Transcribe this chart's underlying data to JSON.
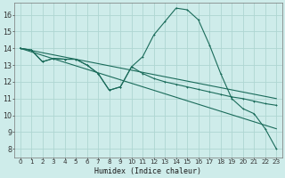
{
  "background_color": "#ceecea",
  "grid_color": "#aed6d2",
  "line_color": "#1a6b5a",
  "xlabel": "Humidex (Indice chaleur)",
  "xlim": [
    -0.5,
    23.5
  ],
  "ylim": [
    7.5,
    16.7
  ],
  "yticks": [
    8,
    9,
    10,
    11,
    12,
    13,
    14,
    15,
    16
  ],
  "xticks": [
    0,
    1,
    2,
    3,
    4,
    5,
    6,
    7,
    8,
    9,
    10,
    11,
    12,
    13,
    14,
    15,
    16,
    17,
    18,
    19,
    20,
    21,
    22,
    23
  ],
  "series1_x": [
    0,
    1,
    2,
    3,
    4,
    5,
    6,
    7,
    8,
    9,
    10,
    11,
    12,
    13,
    14,
    15,
    16,
    17,
    18,
    19,
    20,
    21,
    22,
    23
  ],
  "series1_y": [
    14.0,
    13.9,
    13.2,
    13.4,
    13.35,
    13.35,
    13.0,
    12.5,
    11.5,
    11.7,
    12.9,
    13.5,
    14.8,
    15.6,
    16.4,
    16.3,
    15.7,
    14.2,
    12.5,
    11.0,
    10.4,
    10.1,
    9.2,
    8.0
  ],
  "series2_x": [
    0,
    1,
    2,
    3,
    4,
    5,
    6,
    7,
    8,
    9,
    10,
    11,
    12,
    13,
    14,
    15,
    16,
    17,
    18,
    19,
    20,
    21,
    22,
    23
  ],
  "series2_y": [
    14.0,
    13.9,
    13.2,
    13.4,
    13.35,
    13.35,
    13.0,
    12.5,
    11.5,
    11.7,
    12.9,
    12.5,
    12.2,
    12.0,
    11.85,
    11.7,
    11.55,
    11.4,
    11.25,
    11.1,
    11.0,
    10.85,
    10.7,
    10.6
  ],
  "line3_x": [
    0,
    23
  ],
  "line3_y": [
    14.0,
    11.0
  ],
  "line4_x": [
    0,
    23
  ],
  "line4_y": [
    14.0,
    9.2
  ]
}
